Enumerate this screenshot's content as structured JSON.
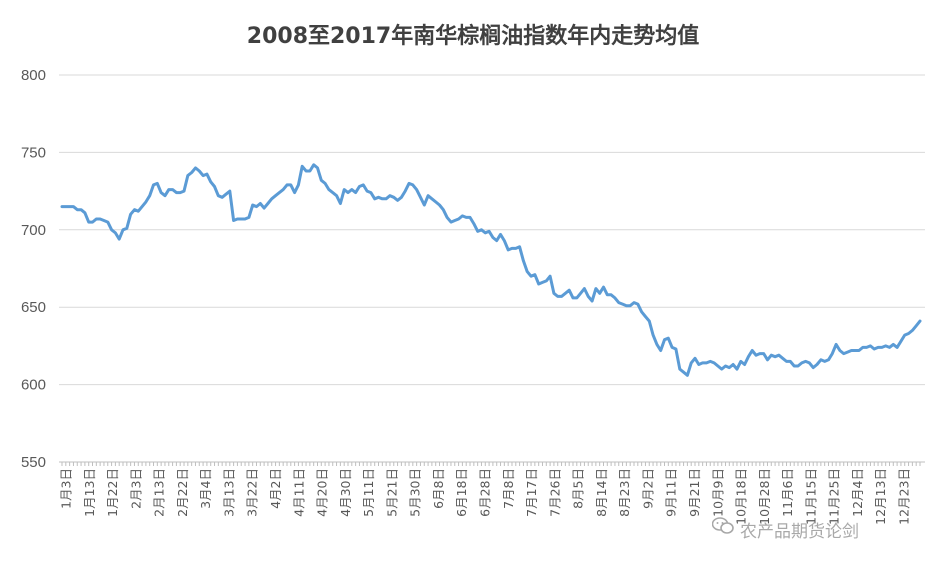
{
  "chart_data": {
    "type": "line",
    "title": "2008至2017年南华棕榈油指数年内走势均值",
    "ylim": [
      550,
      800
    ],
    "yticks": [
      550,
      600,
      650,
      700,
      750,
      800
    ],
    "grid": "horizontal",
    "series_color": "#5b9bd5",
    "x_tick_labels": [
      "1月3日",
      "1月13日",
      "1月22日",
      "2月3日",
      "2月13日",
      "2月22日",
      "3月4日",
      "3月13日",
      "3月22日",
      "4月2日",
      "4月11日",
      "4月20日",
      "4月30日",
      "5月11日",
      "5月21日",
      "5月30日",
      "6月8日",
      "6月18日",
      "6月28日",
      "7月8日",
      "7月17日",
      "7月26日",
      "8月5日",
      "8月14日",
      "8月23日",
      "9月2日",
      "9月11日",
      "9月21日",
      "10月9日",
      "10月18日",
      "10月28日",
      "11月6日",
      "11月15日",
      "11月25日",
      "12月4日",
      "12月13日",
      "12月23日"
    ],
    "values": [
      715,
      715,
      715,
      715,
      713,
      713,
      711,
      705,
      705,
      707,
      707,
      706,
      705,
      700,
      698,
      694,
      700,
      701,
      710,
      713,
      712,
      715,
      718,
      722,
      729,
      730,
      724,
      722,
      726,
      726,
      724,
      724,
      725,
      735,
      737,
      740,
      738,
      735,
      736,
      731,
      728,
      722,
      721,
      723,
      725,
      706,
      707,
      707,
      707,
      708,
      716,
      715,
      717,
      714,
      717,
      720,
      722,
      724,
      726,
      729,
      729,
      724,
      729,
      741,
      738,
      738,
      742,
      740,
      732,
      730,
      726,
      724,
      722,
      717,
      726,
      724,
      726,
      724,
      728,
      729,
      725,
      724,
      720,
      721,
      720,
      720,
      722,
      721,
      719,
      721,
      725,
      730,
      729,
      726,
      721,
      716,
      722,
      720,
      718,
      716,
      713,
      708,
      705,
      706,
      707,
      709,
      708,
      708,
      704,
      699,
      700,
      698,
      699,
      695,
      693,
      697,
      693,
      687,
      688,
      688,
      689,
      680,
      673,
      670,
      671,
      665,
      666,
      667,
      670,
      659,
      657,
      657,
      659,
      661,
      656,
      656,
      659,
      662,
      657,
      654,
      662,
      659,
      663,
      658,
      658,
      656,
      653,
      652,
      651,
      651,
      653,
      652,
      647,
      644,
      641,
      632,
      626,
      622,
      629,
      630,
      624,
      623,
      610,
      608,
      606,
      614,
      617,
      613,
      614,
      614,
      615,
      614,
      612,
      610,
      612,
      611,
      613,
      610,
      615,
      613,
      618,
      622,
      619,
      620,
      620,
      616,
      619,
      618,
      619,
      617,
      615,
      615,
      612,
      612,
      614,
      615,
      614,
      611,
      613,
      616,
      615,
      616,
      620,
      626,
      622,
      620,
      621,
      622,
      622,
      622,
      624,
      624,
      625,
      623,
      624,
      624,
      625,
      624,
      626,
      624,
      628,
      632,
      633,
      635,
      638,
      641
    ],
    "watermark": "农产品期货论剑"
  }
}
